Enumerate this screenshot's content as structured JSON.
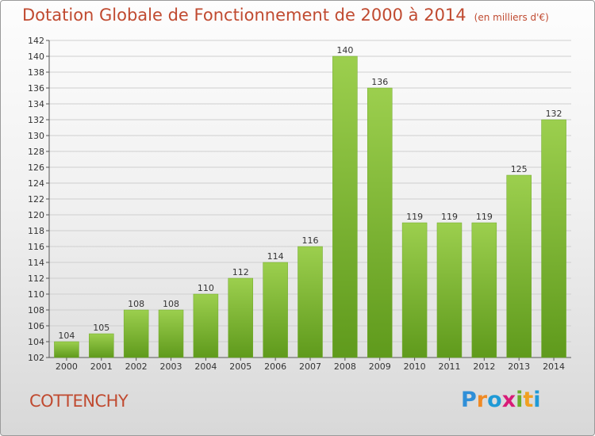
{
  "title": {
    "main": "Dotation Globale de Fonctionnement de 2000 à 2014",
    "unit": "(en milliers d'€)"
  },
  "commune": "COTTENCHY",
  "logo": "Proxiti",
  "colors": {
    "bar_top": "#9ccf4e",
    "bar_bottom": "#5f9a1c",
    "title": "#c04a30",
    "grid": "#cfcfcf"
  },
  "chart_data": {
    "type": "bar",
    "title": "Dotation Globale de Fonctionnement de 2000 à 2014",
    "subtitle": "(en milliers d'€)",
    "xlabel": "",
    "ylabel": "",
    "grid": true,
    "ylim": [
      102,
      142
    ],
    "yticks": [
      102,
      104,
      106,
      108,
      110,
      112,
      114,
      116,
      118,
      120,
      122,
      124,
      126,
      128,
      130,
      132,
      134,
      136,
      138,
      140,
      142
    ],
    "categories": [
      "2000",
      "2001",
      "2002",
      "2003",
      "2004",
      "2005",
      "2006",
      "2007",
      "2008",
      "2009",
      "2010",
      "2011",
      "2012",
      "2013",
      "2014"
    ],
    "values": [
      104,
      105,
      108,
      108,
      110,
      112,
      114,
      116,
      140,
      136,
      119,
      119,
      119,
      125,
      132
    ]
  }
}
